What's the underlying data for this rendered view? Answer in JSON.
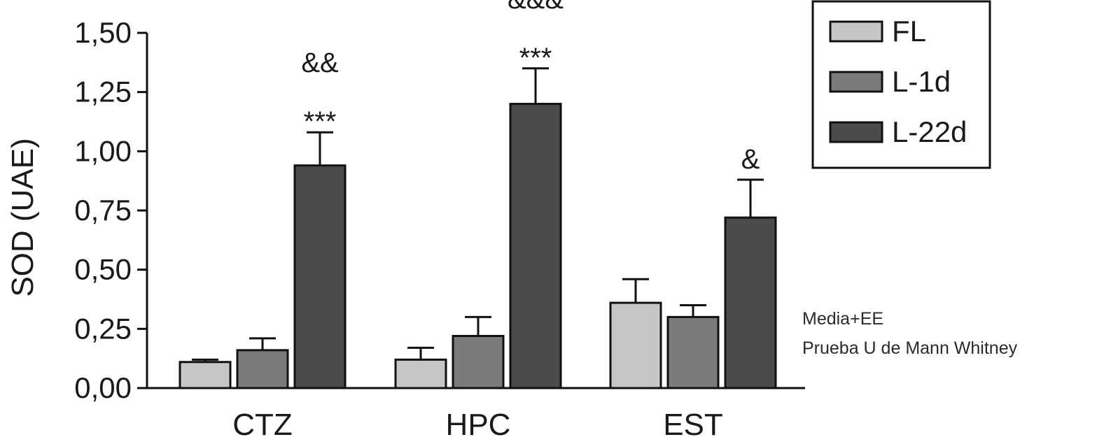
{
  "chart_data": {
    "type": "bar",
    "ylabel": "SOD (UAE)",
    "ylim": [
      0,
      1.5
    ],
    "yticks": [
      "0,00",
      "0,25",
      "0,50",
      "0,75",
      "1,00",
      "1,25",
      "1,50"
    ],
    "ytick_values": [
      0,
      0.25,
      0.5,
      0.75,
      1.0,
      1.25,
      1.5
    ],
    "categories": [
      "CTZ",
      "HPC",
      "EST"
    ],
    "series": [
      {
        "name": "FL",
        "color": "#c6c6c6",
        "values": [
          0.11,
          0.12,
          0.36
        ],
        "errors": [
          0.01,
          0.05,
          0.1
        ]
      },
      {
        "name": "L-1d",
        "color": "#7b7b7b",
        "values": [
          0.16,
          0.22,
          0.3
        ],
        "errors": [
          0.05,
          0.08,
          0.05
        ]
      },
      {
        "name": "L-22d",
        "color": "#4b4b4b",
        "values": [
          0.94,
          1.2,
          0.72
        ],
        "errors": [
          0.14,
          0.15,
          0.16
        ]
      }
    ],
    "annotations": [
      {
        "category": 0,
        "series": 2,
        "lines": [
          "&&",
          "***"
        ]
      },
      {
        "category": 1,
        "series": 2,
        "lines": [
          "&&&",
          "***"
        ]
      },
      {
        "category": 2,
        "series": 2,
        "lines": [
          "&"
        ]
      }
    ],
    "legend": {
      "position": "top-right"
    },
    "notes": [
      "Media+EE",
      "Prueba U de Mann Whitney"
    ],
    "grid": false
  }
}
